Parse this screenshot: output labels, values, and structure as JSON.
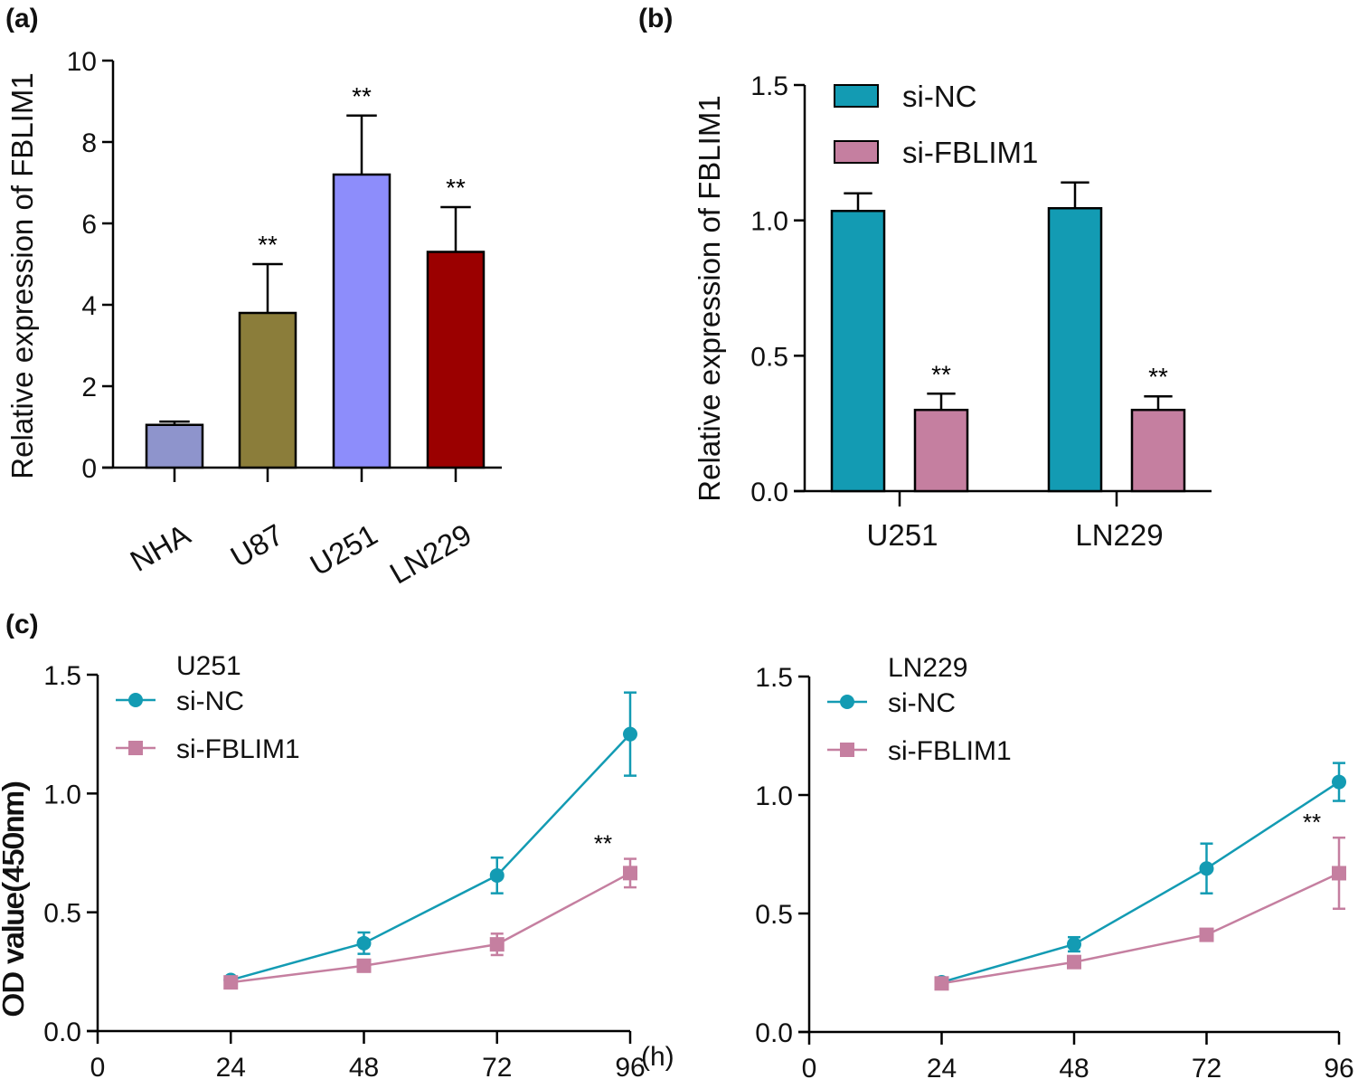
{
  "chart_data": [
    {
      "panel": "(a)",
      "type": "bar",
      "ylabel": "Relative expression of FBLIM1",
      "ylim": [
        0,
        10
      ],
      "yticks": [
        "0",
        "2",
        "4",
        "6",
        "8",
        "10"
      ],
      "categories": [
        "NHA",
        "U87",
        "U251",
        "LN229"
      ],
      "values": [
        1.05,
        3.8,
        7.2,
        5.3
      ],
      "error_upper": [
        1.13,
        5.0,
        8.65,
        6.4
      ],
      "colors": [
        "#8e94cc",
        "#8b7d3a",
        "#8d8dfb",
        "#9b0000"
      ],
      "annotations": [
        "",
        "**",
        "**",
        "**"
      ]
    },
    {
      "panel": "(b)",
      "type": "bar",
      "ylabel": "Relative expression of FBLIM1",
      "ylim": [
        0,
        1.5
      ],
      "yticks": [
        "0.0",
        "0.5",
        "1.0",
        "1.5"
      ],
      "categories": [
        "U251",
        "LN229"
      ],
      "legend": "top-left",
      "series": [
        {
          "name": "si-NC",
          "color": "#139bb3",
          "values": [
            1.035,
            1.045
          ],
          "error_upper": [
            1.1,
            1.14
          ],
          "annotations": [
            "",
            ""
          ]
        },
        {
          "name": "si-FBLIM1",
          "color": "#c57fa0",
          "values": [
            0.3,
            0.3
          ],
          "error_upper": [
            0.36,
            0.35
          ],
          "annotations": [
            "**",
            "**"
          ]
        }
      ]
    },
    {
      "panel": "(c)",
      "type": "line",
      "title": "U251",
      "ylabel": "OD value(450nm)",
      "xunit": "(h)",
      "ylim": [
        0,
        1.5
      ],
      "xlim": [
        0,
        96
      ],
      "yticks": [
        "0.0",
        "0.5",
        "1.0",
        "1.5"
      ],
      "xticks": [
        "0",
        "24",
        "48",
        "72",
        "96"
      ],
      "x": [
        24,
        48,
        72,
        96
      ],
      "legend": "top-left",
      "series": [
        {
          "name": "si-NC",
          "marker": "circle",
          "color": "#139bb3",
          "values": [
            0.215,
            0.37,
            0.655,
            1.25
          ],
          "errors": [
            0.01,
            0.045,
            0.075,
            0.175
          ]
        },
        {
          "name": "si-FBLIM1",
          "marker": "square",
          "color": "#c57fa0",
          "values": [
            0.205,
            0.275,
            0.365,
            0.665
          ],
          "errors": [
            0.01,
            0.025,
            0.045,
            0.06
          ]
        }
      ],
      "annotation": "**"
    },
    {
      "type": "line",
      "title": "LN229",
      "ylabel": "OD value(450nm)",
      "ylim": [
        0,
        1.5
      ],
      "xlim": [
        0,
        96
      ],
      "yticks": [
        "0.0",
        "0.5",
        "1.0",
        "1.5"
      ],
      "xticks": [
        "0",
        "24",
        "48",
        "72",
        "96"
      ],
      "x": [
        24,
        48,
        72,
        96
      ],
      "legend": "top-left",
      "series": [
        {
          "name": "si-NC",
          "marker": "circle",
          "color": "#139bb3",
          "values": [
            0.21,
            0.37,
            0.69,
            1.055
          ],
          "errors": [
            0.01,
            0.03,
            0.105,
            0.08
          ]
        },
        {
          "name": "si-FBLIM1",
          "marker": "square",
          "color": "#c57fa0",
          "values": [
            0.205,
            0.295,
            0.41,
            0.67
          ],
          "errors": [
            0.01,
            0.01,
            0.01,
            0.15
          ]
        }
      ],
      "annotation": "**"
    }
  ]
}
